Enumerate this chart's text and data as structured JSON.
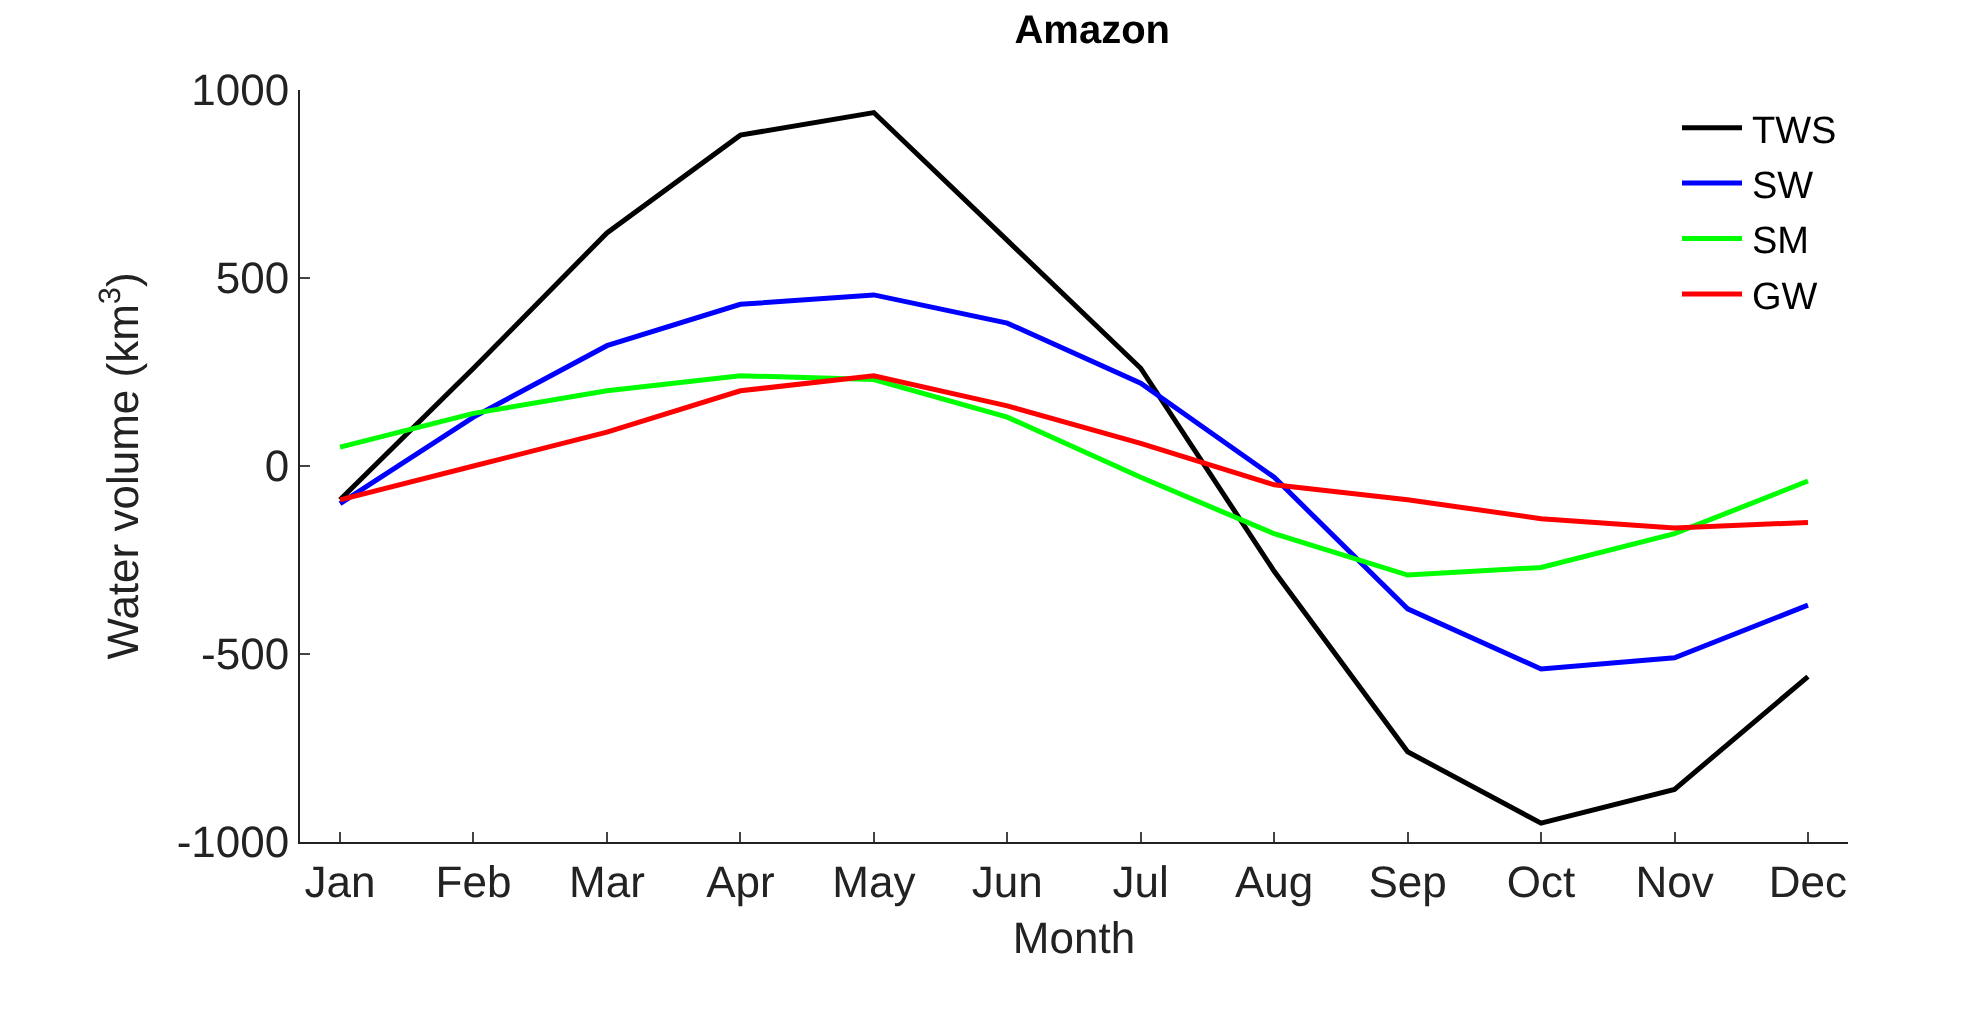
{
  "chart_data": {
    "type": "line",
    "title": "Amazon",
    "xlabel": "Month",
    "ylabel": "Water volume (km$^{3}$)",
    "categories": [
      "Jan",
      "Feb",
      "Mar",
      "Apr",
      "May",
      "Jun",
      "Jul",
      "Aug",
      "Sep",
      "Oct",
      "Nov",
      "Dec"
    ],
    "ylim": [
      -1000,
      1000
    ],
    "yticks": [
      -1000,
      -500,
      0,
      500,
      1000
    ],
    "grid": false,
    "legend": "top right",
    "marker": "none",
    "line_style": "solid",
    "series": [
      {
        "name": "TWS",
        "color": "#000000",
        "values": [
          -90,
          260,
          620,
          880,
          940,
          600,
          260,
          -280,
          -760,
          -950,
          -860,
          -560
        ]
      },
      {
        "name": "SW",
        "color": "#0000ff",
        "values": [
          -100,
          130,
          320,
          430,
          455,
          380,
          220,
          -30,
          -380,
          -540,
          -510,
          -370
        ]
      },
      {
        "name": "SM",
        "color": "#00ff00",
        "values": [
          50,
          140,
          200,
          240,
          230,
          130,
          -30,
          -180,
          -290,
          -270,
          -180,
          -40
        ]
      },
      {
        "name": "GW",
        "color": "#ff0000",
        "values": [
          -90,
          0,
          90,
          200,
          240,
          160,
          60,
          -50,
          -90,
          -140,
          -165,
          -150
        ]
      }
    ]
  }
}
